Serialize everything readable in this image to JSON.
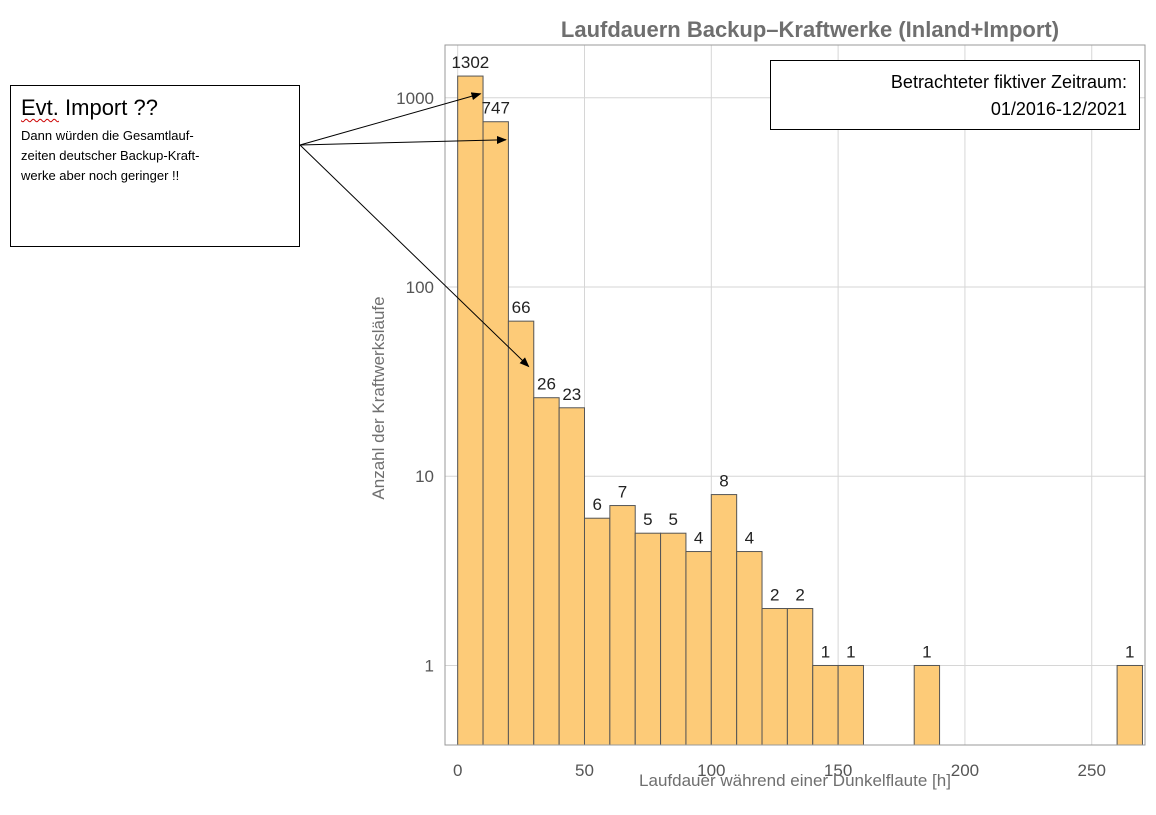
{
  "chart_data": {
    "type": "bar",
    "title": "Laufdauern Backup–Kraftwerke (Inland+Import)",
    "xlabel": "Laufdauer während einer Dunkelflaute [h]",
    "ylabel": "Anzahl der Kraftwerksläufe",
    "yscale": "log",
    "bin_width": 10,
    "xlim": [
      -5,
      271
    ],
    "ylim": [
      0.38,
      1900
    ],
    "xticks": [
      0,
      50,
      100,
      150,
      200,
      250
    ],
    "yticks": [
      1,
      10,
      100,
      1000
    ],
    "grid": true,
    "bars": [
      {
        "x0": 0,
        "x1": 10,
        "value": 1302,
        "label": "1302"
      },
      {
        "x0": 10,
        "x1": 20,
        "value": 747,
        "label": "747"
      },
      {
        "x0": 20,
        "x1": 30,
        "value": 66,
        "label": "66"
      },
      {
        "x0": 30,
        "x1": 40,
        "value": 26,
        "label": "26"
      },
      {
        "x0": 40,
        "x1": 50,
        "value": 23,
        "label": "23"
      },
      {
        "x0": 50,
        "x1": 60,
        "value": 6,
        "label": "6"
      },
      {
        "x0": 60,
        "x1": 70,
        "value": 7,
        "label": "7"
      },
      {
        "x0": 70,
        "x1": 80,
        "value": 5,
        "label": "5"
      },
      {
        "x0": 80,
        "x1": 90,
        "value": 5,
        "label": "5"
      },
      {
        "x0": 90,
        "x1": 100,
        "value": 4,
        "label": "4"
      },
      {
        "x0": 100,
        "x1": 110,
        "value": 8,
        "label": "8"
      },
      {
        "x0": 110,
        "x1": 120,
        "value": 4,
        "label": "4"
      },
      {
        "x0": 120,
        "x1": 130,
        "value": 2,
        "label": "2"
      },
      {
        "x0": 130,
        "x1": 140,
        "value": 2,
        "label": "2"
      },
      {
        "x0": 140,
        "x1": 150,
        "value": 1,
        "label": "1"
      },
      {
        "x0": 150,
        "x1": 160,
        "value": 1,
        "label": "1"
      },
      {
        "x0": 180,
        "x1": 190,
        "value": 1,
        "label": "1"
      },
      {
        "x0": 260,
        "x1": 270,
        "value": 1,
        "label": "1"
      }
    ],
    "bar_color": "#fdcb78"
  },
  "annotation": {
    "heading_squiggle": "Evt.",
    "heading_rest": " Import ??",
    "lines": [
      "Dann würden die Gesamtlauf-",
      "zeiten deutscher Backup-Kraft-",
      "werke aber noch geringer !!"
    ],
    "arrow_targets": [
      {
        "x": 9,
        "y": 1050
      },
      {
        "x": 19,
        "y": 600
      },
      {
        "x": 28,
        "y": 38
      }
    ]
  },
  "period": {
    "line1": "Betrachteter fiktiver Zeitraum:",
    "line2": "01/2016-12/2021"
  }
}
